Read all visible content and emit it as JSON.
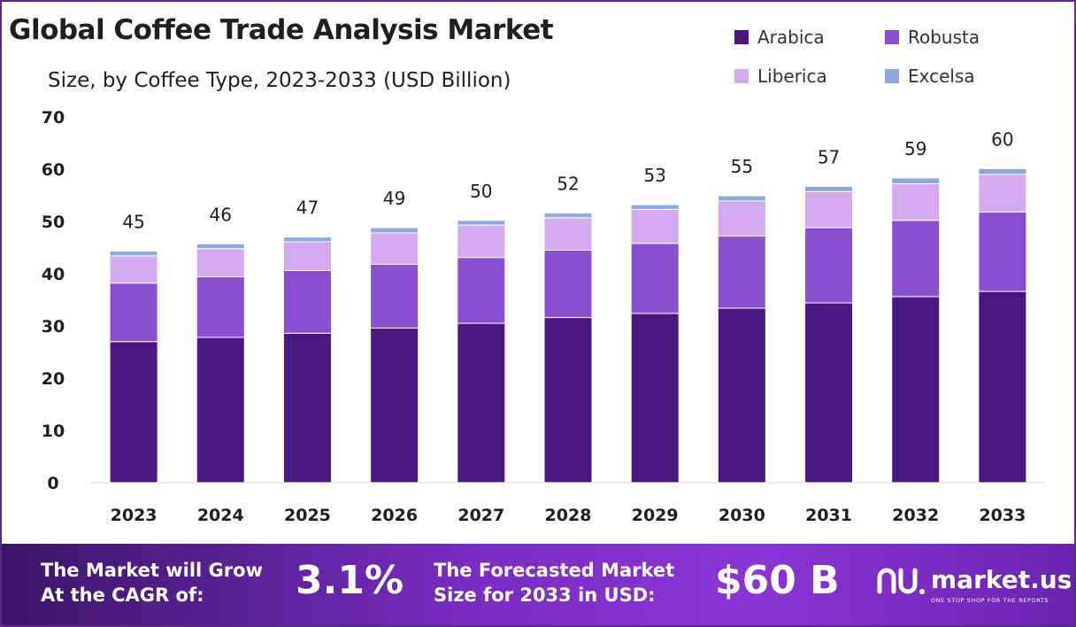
{
  "header": {
    "title": "Global Coffee Trade Analysis Market",
    "subtitle": "Size, by Coffee Type, 2023-2033 (USD Billion)"
  },
  "legend": [
    {
      "name": "Arabica",
      "color": "#4a1680"
    },
    {
      "name": "Robusta",
      "color": "#8a4fd1"
    },
    {
      "name": "Liberica",
      "color": "#d3aaef"
    },
    {
      "name": "Excelsa",
      "color": "#8fa8dc"
    }
  ],
  "chart_data": {
    "type": "bar",
    "stacked": true,
    "categories": [
      "2023",
      "2024",
      "2025",
      "2026",
      "2027",
      "2028",
      "2029",
      "2030",
      "2031",
      "2032",
      "2033"
    ],
    "series": [
      {
        "name": "Arabica",
        "color": "#4a1680",
        "values": [
          27.0,
          27.8,
          28.6,
          29.6,
          30.5,
          31.6,
          32.4,
          33.4,
          34.4,
          35.6,
          36.6
        ]
      },
      {
        "name": "Robusta",
        "color": "#8a4fd1",
        "values": [
          11.2,
          11.6,
          12.0,
          12.2,
          12.6,
          12.9,
          13.4,
          13.8,
          14.4,
          14.6,
          15.2
        ]
      },
      {
        "name": "Liberica",
        "color": "#d3aaef",
        "values": [
          5.2,
          5.4,
          5.5,
          6.0,
          6.2,
          6.2,
          6.5,
          6.7,
          6.9,
          7.0,
          7.2
        ]
      },
      {
        "name": "Excelsa",
        "color": "#8fa8dc",
        "values": [
          0.9,
          0.9,
          0.9,
          1.0,
          0.9,
          0.9,
          0.9,
          1.0,
          1.0,
          1.1,
          1.1
        ]
      }
    ],
    "totals": [
      "45",
      "46",
      "47",
      "49",
      "50",
      "52",
      "53",
      "55",
      "57",
      "59",
      "60"
    ],
    "ylim": [
      0,
      70
    ],
    "yticks": [
      "0",
      "10",
      "20",
      "30",
      "40",
      "50",
      "60",
      "70"
    ],
    "grid": false,
    "legend_position": "top-right"
  },
  "banner": {
    "cagr_label_line1": "The Market will Grow",
    "cagr_label_line2": "At the CAGR of:",
    "cagr_value": "3.1%",
    "forecast_label_line1": "The Forecasted Market",
    "forecast_label_line2": "Size for 2033 in USD:",
    "forecast_value": "$60 B",
    "brand_name": "market.us",
    "brand_tagline": "ONE STOP SHOP FOR THE REPORTS"
  }
}
